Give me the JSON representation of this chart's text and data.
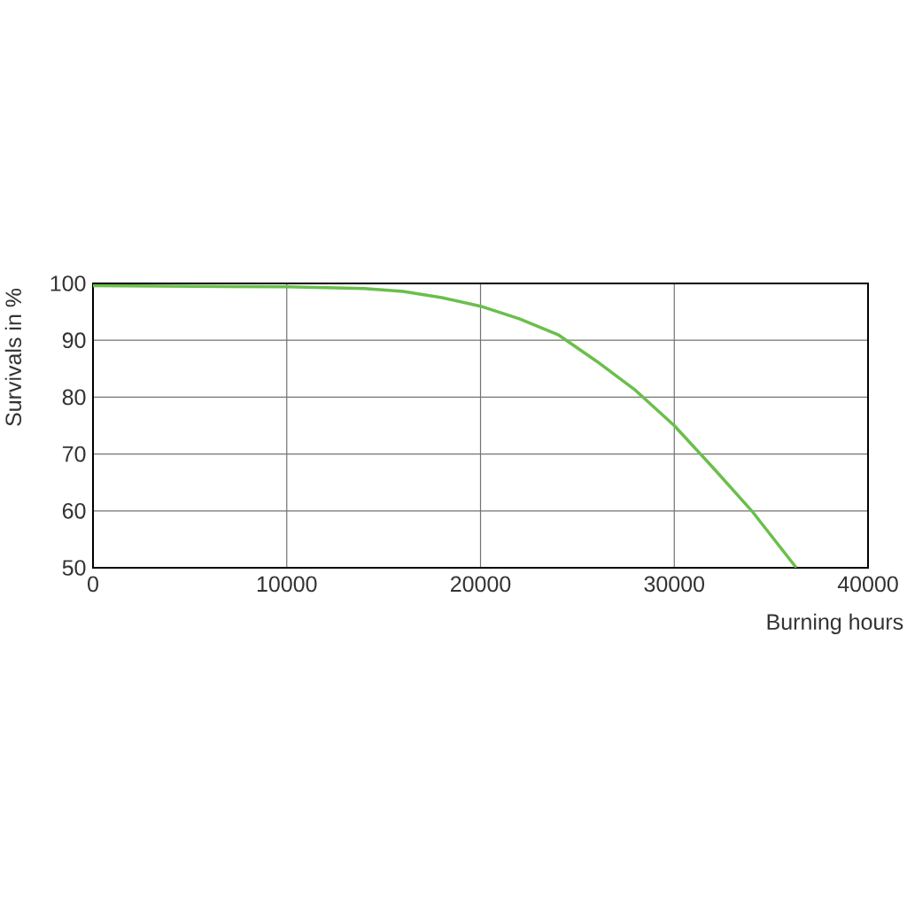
{
  "chart_data": {
    "type": "line",
    "xlabel": "Burning hours",
    "ylabel": "Survivals in %",
    "x": [
      0,
      10000,
      14000,
      16000,
      18000,
      20000,
      22000,
      24000,
      26000,
      28000,
      30000,
      32000,
      34000,
      36300
    ],
    "series": [
      {
        "color": "#6abf4b",
        "values": [
          99.6,
          99.4,
          99.1,
          98.6,
          97.5,
          96,
          93.8,
          91,
          86.3,
          81.2,
          75,
          67.6,
          60,
          50
        ]
      }
    ],
    "xlim": [
      0,
      40000
    ],
    "ylim": [
      50,
      100
    ],
    "xticks": [
      0,
      10000,
      20000,
      30000,
      40000
    ],
    "yticks": [
      50,
      60,
      70,
      80,
      90,
      100
    ],
    "grid": true
  }
}
